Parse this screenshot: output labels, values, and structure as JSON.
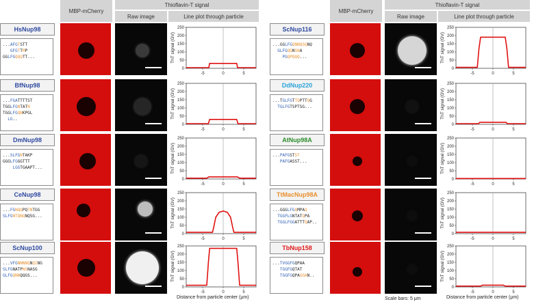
{
  "headers": {
    "mbp": "MBP-mCherry",
    "tht": "Thioflavin-T signal",
    "raw": "Raw image",
    "line": "Line plot through particle"
  },
  "footer": {
    "xlabel": "Distance from particle center (μm)",
    "scale": "Scale bars: 5 μm"
  },
  "plot_ylabel": "ThT signal (GV)",
  "colors": {
    "mcherry": "#d40d0d",
    "trace": "#e01010",
    "blue": "#2f5fb3",
    "orange": "#e8902e",
    "header": "#d4d4d4"
  },
  "proteins": [
    {
      "name": "HsNup98",
      "name_color": "#2f4aa0",
      "seq": [
        [
          {
            "t": "...",
            "c": ""
          },
          {
            "t": "AFG",
            "c": "b"
          },
          {
            "t": "T",
            "c": "o"
          },
          {
            "t": "STT",
            "c": ""
          }
        ],
        [
          {
            "t": "   ",
            "c": ""
          },
          {
            "t": "GFG",
            "c": "b"
          },
          {
            "t": "T",
            "c": "o"
          },
          {
            "t": "T",
            "c": ""
          },
          {
            "t": "M",
            "c": "o"
          },
          {
            "t": "P",
            "c": ""
          }
        ],
        [
          {
            "t": "GG",
            "c": ""
          },
          {
            "t": "LFG",
            "c": "b"
          },
          {
            "t": "Q",
            "c": "o"
          },
          {
            "t": "QQ",
            "c": "o"
          },
          {
            "t": "TT...",
            "c": ""
          }
        ]
      ]
    },
    {
      "name": "BfNup98",
      "name_color": "#2f4aa0",
      "seq": [
        [
          {
            "t": "...",
            "c": ""
          },
          {
            "t": "FGA",
            "c": "b"
          },
          {
            "t": "TTTTST",
            "c": ""
          }
        ],
        [
          {
            "t": "TGG",
            "c": ""
          },
          {
            "t": "LFG",
            "c": "b"
          },
          {
            "t": "N",
            "c": "o"
          },
          {
            "t": "TAT",
            "c": ""
          },
          {
            "t": "N",
            "c": "o"
          }
        ],
        [
          {
            "t": "TGG",
            "c": ""
          },
          {
            "t": "LFG",
            "c": "b"
          },
          {
            "t": "QN",
            "c": "o"
          },
          {
            "t": "K",
            "c": ""
          },
          {
            "t": "PGL",
            "c": ""
          }
        ],
        [
          {
            "t": "  ",
            "c": ""
          },
          {
            "t": "LG",
            "c": "b"
          },
          {
            "t": "..",
            "c": ""
          }
        ]
      ]
    },
    {
      "name": "DmNup98",
      "name_color": "#2f4aa0",
      "seq": [
        [
          {
            "t": "...",
            "c": ""
          },
          {
            "t": "SLFG",
            "c": "b"
          },
          {
            "t": "N",
            "c": "o"
          },
          {
            "t": "TAKP",
            "c": ""
          }
        ],
        [
          {
            "t": "GGG",
            "c": ""
          },
          {
            "t": "LFG",
            "c": "b"
          },
          {
            "t": "GGTTT",
            "c": ""
          }
        ],
        [
          {
            "t": "    ",
            "c": ""
          },
          {
            "t": "LGG",
            "c": "b"
          },
          {
            "t": "TGAAPT...",
            "c": ""
          }
        ]
      ]
    },
    {
      "name": "CeNup98",
      "name_color": "#2f4aa0",
      "seq": [
        [
          {
            "t": "...",
            "c": ""
          },
          {
            "t": "FG",
            "c": "b"
          },
          {
            "t": "NQQ",
            "c": "o"
          },
          {
            "t": "PQ",
            "c": ""
          },
          {
            "t": "TN",
            "c": "o"
          },
          {
            "t": "TGG",
            "c": ""
          }
        ],
        [
          {
            "t": "SLFG",
            "c": "b"
          },
          {
            "t": "NTQ",
            "c": "o"
          },
          {
            "t": "NQ",
            "c": "o"
          },
          {
            "t": "NQSG...",
            "c": ""
          }
        ]
      ]
    },
    {
      "name": "ScNup100",
      "name_color": "#2f4aa0",
      "seq": [
        [
          {
            "t": "...",
            "c": ""
          },
          {
            "t": "VFG",
            "c": "b"
          },
          {
            "t": "NNNNQ",
            "c": "o"
          },
          {
            "t": "N",
            "c": ""
          },
          {
            "t": "QI",
            "c": "o"
          },
          {
            "t": "NG",
            "c": ""
          }
        ],
        [
          {
            "t": "SLFG",
            "c": "b"
          },
          {
            "t": "NATP",
            "c": ""
          },
          {
            "t": "NS",
            "c": "o"
          },
          {
            "t": "NASG",
            "c": ""
          }
        ],
        [
          {
            "t": "GLFG",
            "c": "b"
          },
          {
            "t": "QNN",
            "c": "o"
          },
          {
            "t": "QQGS...",
            "c": ""
          }
        ]
      ]
    },
    {
      "name": "ScNup116",
      "name_color": "#2f4aa0",
      "seq": [
        [
          {
            "t": "...GG",
            "c": ""
          },
          {
            "t": "LFG",
            "c": "b"
          },
          {
            "t": "QNNQSQ",
            "c": "o"
          },
          {
            "t": "NQ",
            "c": ""
          }
        ],
        [
          {
            "t": "  ",
            "c": ""
          },
          {
            "t": "GLFG",
            "c": "b"
          },
          {
            "t": "QQ",
            "c": "o"
          },
          {
            "t": "N",
            "c": ""
          },
          {
            "t": "SN",
            "c": "o"
          },
          {
            "t": "A",
            "c": ""
          }
        ],
        [
          {
            "t": "    ",
            "c": ""
          },
          {
            "t": "PG",
            "c": "b"
          },
          {
            "t": "QPQQQ",
            "c": "o"
          },
          {
            "t": "...",
            "c": ""
          }
        ]
      ]
    },
    {
      "name": "DdNup220",
      "name_color": "#2aa3d8",
      "seq": [
        [
          {
            "t": "...T",
            "c": ""
          },
          {
            "t": "GLFG",
            "c": "b"
          },
          {
            "t": "T",
            "c": ""
          },
          {
            "t": "TQ",
            "c": "o"
          },
          {
            "t": "PTT",
            "c": ""
          },
          {
            "t": "Q",
            "c": "o"
          },
          {
            "t": "G",
            "c": ""
          }
        ],
        [
          {
            "t": "  ",
            "c": ""
          },
          {
            "t": "TGLFG",
            "c": "b"
          },
          {
            "t": "TSPTSG...",
            "c": ""
          }
        ]
      ]
    },
    {
      "name": "AtNup98A",
      "name_color": "#2b8a2b",
      "seq": [
        [
          {
            "t": "...",
            "c": ""
          },
          {
            "t": "PAFG",
            "c": "b"
          },
          {
            "t": "ST",
            "c": ""
          },
          {
            "t": "ST",
            "c": "o"
          }
        ],
        [
          {
            "t": "   ",
            "c": ""
          },
          {
            "t": "PAFG",
            "c": "b"
          },
          {
            "t": "ASST...",
            "c": ""
          }
        ]
      ]
    },
    {
      "name": "TtMacNup98A",
      "name_color": "#e8902e",
      "seq": [
        [
          {
            "t": "...GGG",
            "c": ""
          },
          {
            "t": "LFG",
            "c": "b"
          },
          {
            "t": "Q",
            "c": "o"
          },
          {
            "t": "MPA",
            "c": ""
          },
          {
            "t": "Q",
            "c": "o"
          }
        ],
        [
          {
            "t": "  ",
            "c": ""
          },
          {
            "t": "TGGFLG",
            "c": "b"
          },
          {
            "t": "NTAT",
            "c": ""
          },
          {
            "t": "Q",
            "c": "o"
          },
          {
            "t": "PA",
            "c": ""
          }
        ],
        [
          {
            "t": "  ",
            "c": ""
          },
          {
            "t": "TGGLFGG",
            "c": "b"
          },
          {
            "t": "ATTT",
            "c": ""
          },
          {
            "t": "Q",
            "c": "o"
          },
          {
            "t": "AP..",
            "c": ""
          }
        ]
      ]
    },
    {
      "name": "TbNup158",
      "name_color": "#e01818",
      "seq": [
        [
          {
            "t": "...",
            "c": ""
          },
          {
            "t": "TVGGFG",
            "c": "b"
          },
          {
            "t": "QPAA",
            "c": ""
          }
        ],
        [
          {
            "t": "   ",
            "c": ""
          },
          {
            "t": "TGGFG",
            "c": "b"
          },
          {
            "t": "QTAT",
            "c": ""
          }
        ],
        [
          {
            "t": "   ",
            "c": ""
          },
          {
            "t": "TGGFG",
            "c": "b"
          },
          {
            "t": "QPA",
            "c": ""
          },
          {
            "t": "GGA",
            "c": "o"
          },
          {
            "t": "N..",
            "c": ""
          }
        ]
      ]
    }
  ],
  "chart_data": [
    {
      "type": "line",
      "title": "HsNup98",
      "xlabel": "Distance from particle center (μm)",
      "ylabel": "ThT signal (GV)",
      "xlim": [
        -9,
        8
      ],
      "ylim": [
        0,
        250
      ],
      "xticks": [
        -5,
        0,
        5
      ],
      "yticks": [
        0,
        50,
        100,
        150,
        200,
        250
      ],
      "x": [
        -9,
        -3.5,
        -3.3,
        3.3,
        3.5,
        8
      ],
      "y": [
        4,
        4,
        30,
        30,
        4,
        4
      ]
    },
    {
      "type": "line",
      "title": "BfNup98",
      "xlabel": "Distance from particle center (μm)",
      "ylabel": "ThT signal (GV)",
      "xlim": [
        -9,
        8
      ],
      "ylim": [
        0,
        250
      ],
      "xticks": [
        -5,
        0,
        5
      ],
      "yticks": [
        0,
        50,
        100,
        150,
        200,
        250
      ],
      "x": [
        -9,
        -3.6,
        -3.3,
        3.3,
        3.6,
        8
      ],
      "y": [
        4,
        4,
        30,
        30,
        4,
        4
      ]
    },
    {
      "type": "line",
      "title": "DmNup98",
      "xlabel": "Distance from particle center (μm)",
      "ylabel": "ThT signal (GV)",
      "xlim": [
        -9,
        8
      ],
      "ylim": [
        0,
        250
      ],
      "xticks": [
        -5,
        0,
        5
      ],
      "yticks": [
        0,
        50,
        100,
        150,
        200,
        250
      ],
      "x": [
        -9,
        -4,
        -3.5,
        3.5,
        4,
        8
      ],
      "y": [
        5,
        5,
        13,
        13,
        5,
        5
      ]
    },
    {
      "type": "line",
      "title": "CeNup98",
      "xlabel": "Distance from particle center (μm)",
      "ylabel": "ThT signal (GV)",
      "xlim": [
        -9,
        8
      ],
      "ylim": [
        0,
        250
      ],
      "xticks": [
        -5,
        0,
        5
      ],
      "yticks": [
        0,
        50,
        100,
        150,
        200,
        250
      ],
      "x": [
        -9,
        -2.6,
        -2.3,
        -1.8,
        -1,
        0,
        1,
        1.8,
        2.3,
        2.6,
        8
      ],
      "y": [
        8,
        8,
        40,
        100,
        130,
        138,
        130,
        100,
        40,
        8,
        8
      ]
    },
    {
      "type": "line",
      "title": "ScNup100",
      "xlabel": "Distance from particle center (μm)",
      "ylabel": "ThT signal (GV)",
      "xlim": [
        -9,
        8
      ],
      "ylim": [
        0,
        250
      ],
      "xticks": [
        -5,
        0,
        5
      ],
      "yticks": [
        0,
        50,
        100,
        150,
        200,
        250
      ],
      "x": [
        -9,
        -4,
        -3.6,
        -3.3,
        3.3,
        3.6,
        4,
        8
      ],
      "y": [
        10,
        10,
        150,
        235,
        235,
        150,
        10,
        10
      ]
    },
    {
      "type": "line",
      "title": "ScNup116",
      "xlabel": "Distance from particle center (μm)",
      "ylabel": "ThT signal (GV)",
      "xlim": [
        -9,
        8
      ],
      "ylim": [
        0,
        250
      ],
      "xticks": [
        -5,
        0,
        5
      ],
      "yticks": [
        0,
        50,
        100,
        150,
        200,
        250
      ],
      "x": [
        -9,
        -3.8,
        -3.4,
        -3,
        3,
        3.4,
        3.8,
        8
      ],
      "y": [
        6,
        6,
        120,
        190,
        190,
        120,
        6,
        6
      ]
    },
    {
      "type": "line",
      "title": "DdNup220",
      "xlabel": "Distance from particle center (μm)",
      "ylabel": "ThT signal (GV)",
      "xlim": [
        -9,
        8
      ],
      "ylim": [
        0,
        250
      ],
      "xticks": [
        -5,
        0,
        5
      ],
      "yticks": [
        0,
        50,
        100,
        150,
        200,
        250
      ],
      "x": [
        -9,
        -3.5,
        -3.2,
        3.2,
        3.5,
        8
      ],
      "y": [
        4,
        4,
        12,
        12,
        4,
        4
      ]
    },
    {
      "type": "line",
      "title": "AtNup98A",
      "xlabel": "Distance from particle center (μm)",
      "ylabel": "ThT signal (GV)",
      "xlim": [
        -9,
        8
      ],
      "ylim": [
        0,
        250
      ],
      "xticks": [
        -5,
        0,
        5
      ],
      "yticks": [
        0,
        50,
        100,
        150,
        200,
        250
      ],
      "x": [
        -9,
        8
      ],
      "y": [
        3,
        3
      ]
    },
    {
      "type": "line",
      "title": "TtMacNup98A",
      "xlabel": "Distance from particle center (μm)",
      "ylabel": "ThT signal (GV)",
      "xlim": [
        -9,
        8
      ],
      "ylim": [
        0,
        250
      ],
      "xticks": [
        -5,
        0,
        5
      ],
      "yticks": [
        0,
        50,
        100,
        150,
        200,
        250
      ],
      "x": [
        -9,
        8
      ],
      "y": [
        8,
        8
      ]
    },
    {
      "type": "line",
      "title": "TbNup158",
      "xlabel": "Distance from particle center (μm)",
      "ylabel": "ThT signal (GV)",
      "xlim": [
        -9,
        8
      ],
      "ylim": [
        0,
        250
      ],
      "xticks": [
        -5,
        0,
        5
      ],
      "yticks": [
        0,
        50,
        100,
        150,
        200,
        250
      ],
      "x": [
        -9,
        -3,
        -2.5,
        2.5,
        3,
        8
      ],
      "y": [
        5,
        5,
        11,
        11,
        5,
        5
      ]
    }
  ]
}
